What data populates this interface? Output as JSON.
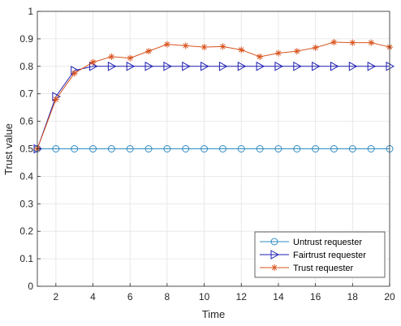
{
  "chart_data": {
    "type": "line",
    "title": "",
    "xlabel": "Time",
    "ylabel": "Trust value",
    "xlim": [
      1,
      20
    ],
    "ylim": [
      0,
      1
    ],
    "xticks": [
      2,
      4,
      6,
      8,
      10,
      12,
      14,
      16,
      18,
      20
    ],
    "xtick_labels": [
      "2",
      "4",
      "6",
      "8",
      "10",
      "12",
      "14",
      "16",
      "18",
      "20"
    ],
    "yticks": [
      0,
      0.1,
      0.2,
      0.3,
      0.4,
      0.5,
      0.6,
      0.7,
      0.8,
      0.9,
      1
    ],
    "ytick_labels": [
      "0",
      "0.1",
      "0.2",
      "0.3",
      "0.4",
      "0.5",
      "0.6",
      "0.7",
      "0.8",
      "0.9",
      "1"
    ],
    "grid": true,
    "legend_position": "bottom-right",
    "x": [
      1,
      2,
      3,
      4,
      5,
      6,
      7,
      8,
      9,
      10,
      11,
      12,
      13,
      14,
      15,
      16,
      17,
      18,
      19,
      20
    ],
    "series": [
      {
        "name": "Untrust requester",
        "color": "#2E8BC0",
        "marker": "circle",
        "values": [
          0.5,
          0.5,
          0.5,
          0.5,
          0.5,
          0.5,
          0.5,
          0.5,
          0.5,
          0.5,
          0.5,
          0.5,
          0.5,
          0.5,
          0.5,
          0.5,
          0.5,
          0.5,
          0.5,
          0.5
        ]
      },
      {
        "name": "Fairtrust requester",
        "color": "#1F1FB4",
        "marker": "triangle-right",
        "values": [
          0.5,
          0.69,
          0.785,
          0.8,
          0.8,
          0.8,
          0.8,
          0.8,
          0.8,
          0.8,
          0.8,
          0.8,
          0.8,
          0.8,
          0.8,
          0.8,
          0.8,
          0.8,
          0.8,
          0.8
        ]
      },
      {
        "name": "Trust requester",
        "color": "#D9541E",
        "marker": "asterisk",
        "values": [
          0.5,
          0.68,
          0.775,
          0.815,
          0.835,
          0.83,
          0.855,
          0.88,
          0.875,
          0.87,
          0.872,
          0.86,
          0.835,
          0.848,
          0.855,
          0.868,
          0.888,
          0.886,
          0.886,
          0.87
        ]
      }
    ]
  }
}
